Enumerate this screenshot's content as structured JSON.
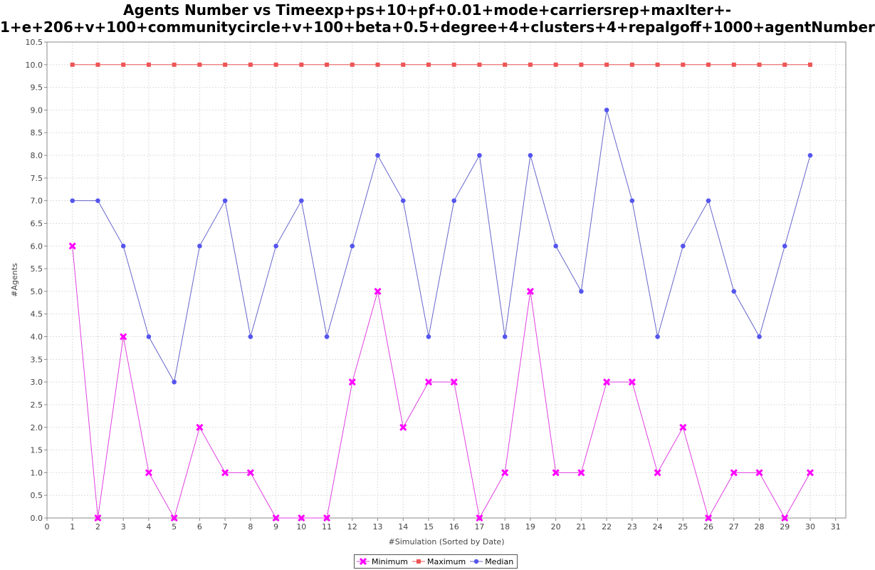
{
  "chart_data": {
    "type": "line",
    "title_lines": [
      "Agents Number vs Timeexp+ps+10+pf+0.01+mode+carriersrep+maxIter+-",
      "1+e+206+v+100+communitycircle+v+100+beta+0.5+degree+4+clusters+4+repalgoff+1000+agentNumber"
    ],
    "xlabel": "#Simulation (Sorted by Date)",
    "ylabel": "#Agents",
    "xlim": [
      0,
      31.4
    ],
    "ylim": [
      0,
      10.5
    ],
    "x_ticks": [
      0,
      1,
      2,
      3,
      4,
      5,
      6,
      7,
      8,
      9,
      10,
      11,
      12,
      13,
      14,
      15,
      16,
      17,
      18,
      19,
      20,
      21,
      22,
      23,
      24,
      25,
      26,
      27,
      28,
      29,
      30,
      31
    ],
    "y_ticks": [
      "0.0",
      "0.5",
      "1.0",
      "1.5",
      "2.0",
      "2.5",
      "3.0",
      "3.5",
      "4.0",
      "4.5",
      "5.0",
      "5.5",
      "6.0",
      "6.5",
      "7.0",
      "7.5",
      "8.0",
      "8.5",
      "9.0",
      "9.5",
      "10.0",
      "10.5"
    ],
    "grid": true,
    "legend_position": "bottom",
    "x": [
      1,
      2,
      3,
      4,
      5,
      6,
      7,
      8,
      9,
      10,
      11,
      12,
      13,
      14,
      15,
      16,
      17,
      18,
      19,
      20,
      21,
      22,
      23,
      24,
      25,
      26,
      27,
      28,
      29,
      30
    ],
    "series": [
      {
        "name": "Minimum",
        "color": "#ff00ff",
        "line_color": "#e040e0",
        "marker": "x",
        "values": [
          6,
          0,
          4,
          1,
          0,
          2,
          1,
          1,
          0,
          0,
          0,
          3,
          5,
          2,
          3,
          3,
          0,
          1,
          5,
          1,
          1,
          3,
          3,
          1,
          2,
          0,
          1,
          1,
          0,
          1
        ]
      },
      {
        "name": "Maximum",
        "color": "#ee5555",
        "line_color": "#ee5555",
        "marker": "square",
        "values": [
          10,
          10,
          10,
          10,
          10,
          10,
          10,
          10,
          10,
          10,
          10,
          10,
          10,
          10,
          10,
          10,
          10,
          10,
          10,
          10,
          10,
          10,
          10,
          10,
          10,
          10,
          10,
          10,
          10,
          10
        ]
      },
      {
        "name": "Median",
        "color": "#5555ee",
        "line_color": "#6666cc",
        "marker": "circle",
        "values": [
          7,
          7,
          6,
          4,
          3,
          6,
          7,
          4,
          6,
          7,
          4,
          6,
          8,
          7,
          4,
          7,
          8,
          4,
          8,
          6,
          5,
          9,
          7,
          4,
          6,
          7,
          5,
          4,
          6,
          8
        ]
      }
    ]
  }
}
